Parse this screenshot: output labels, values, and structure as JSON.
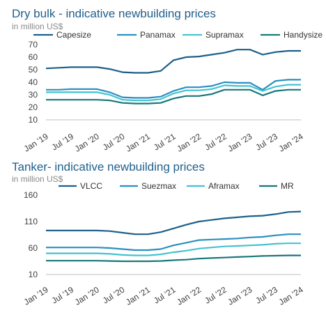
{
  "chart_data": [
    {
      "type": "line",
      "title": "Dry bulk - indicative newbuilding prices",
      "subtitle": "in million US$",
      "xlabel": "",
      "ylabel": "",
      "ylim": [
        10,
        70
      ],
      "yticks": [
        10,
        20,
        30,
        40,
        50,
        60,
        70
      ],
      "x_ticks": [
        "Jan '19",
        "Jul '19",
        "Jan '20",
        "Jul '20",
        "Jan '21",
        "Jul '21",
        "Jan '22",
        "Jul '22",
        "Jan '23",
        "Jul '23",
        "Jan '24"
      ],
      "x": [
        "Jan '19",
        "Apr '19",
        "Jul '19",
        "Oct '19",
        "Jan '20",
        "Apr '20",
        "Jul '20",
        "Oct '20",
        "Jan '21",
        "Apr '21",
        "Jul '21",
        "Oct '21",
        "Jan '22",
        "Apr '22",
        "Jul '22",
        "Oct '22",
        "Jan '23",
        "Apr '23",
        "Jul '23",
        "Oct '23",
        "Jan '24"
      ],
      "grid": false,
      "legend_position": "top",
      "series": [
        {
          "name": "Capesize",
          "color": "#1c5f8a",
          "values": [
            51,
            51.5,
            52,
            52,
            52,
            50.5,
            48,
            47.5,
            47.5,
            49,
            57.5,
            60,
            60.5,
            62,
            63.5,
            66,
            66,
            62,
            64,
            65,
            65
          ]
        },
        {
          "name": "Panamax",
          "color": "#2a8fc1",
          "values": [
            34,
            34,
            34.5,
            34.5,
            34.5,
            32,
            28,
            27.5,
            27.5,
            28.5,
            33,
            36,
            36,
            37,
            40,
            39.5,
            39.5,
            34,
            41,
            42,
            42
          ]
        },
        {
          "name": "Supramax",
          "color": "#44c2d2",
          "values": [
            32,
            32,
            32,
            32,
            32,
            30,
            26,
            25.5,
            25.5,
            26.5,
            31,
            33.5,
            33.5,
            34.5,
            37.5,
            37,
            37,
            33,
            36.5,
            38,
            38
          ]
        },
        {
          "name": "Handysize",
          "color": "#19777a",
          "values": [
            26,
            26,
            26,
            26,
            26,
            25.5,
            23.5,
            23,
            23,
            23.5,
            27,
            29,
            29,
            30.5,
            34,
            34,
            34,
            29.5,
            33,
            34,
            34
          ]
        }
      ]
    },
    {
      "type": "line",
      "title": "Tanker- indicative newbuilding prices",
      "subtitle": "in million US$",
      "xlabel": "",
      "ylabel": "",
      "ylim": [
        10,
        160
      ],
      "yticks": [
        10,
        60,
        110,
        160
      ],
      "x_ticks": [
        "Jan '19",
        "Jul '19",
        "Jan '20",
        "Jul '20",
        "Jan '21",
        "Jul '21",
        "Jan '22",
        "Jul '22",
        "Jan '23",
        "Jul '23",
        "Jan '24"
      ],
      "x": [
        "Jan '19",
        "Apr '19",
        "Jul '19",
        "Oct '19",
        "Jan '20",
        "Apr '20",
        "Jul '20",
        "Oct '20",
        "Jan '21",
        "Apr '21",
        "Jul '21",
        "Oct '21",
        "Jan '22",
        "Apr '22",
        "Jul '22",
        "Oct '22",
        "Jan '23",
        "Apr '23",
        "Jul '23",
        "Oct '23",
        "Jan '24"
      ],
      "grid": false,
      "legend_position": "top",
      "series": [
        {
          "name": "VLCC",
          "color": "#1c5f8a",
          "values": [
            93,
            93,
            93,
            93,
            93,
            92,
            89,
            86,
            86,
            90,
            97,
            104,
            110,
            113,
            116,
            118,
            120,
            121,
            124,
            128,
            129
          ]
        },
        {
          "name": "Suezmax",
          "color": "#2a8fc1",
          "values": [
            61,
            61,
            61,
            61,
            61,
            60,
            58,
            56,
            56,
            58,
            65,
            70,
            75,
            76,
            77,
            78,
            80,
            81,
            84,
            86,
            86
          ]
        },
        {
          "name": "Aframax",
          "color": "#44c2d2",
          "values": [
            50,
            50,
            50,
            50,
            50,
            49,
            47,
            46,
            46,
            48,
            52,
            55,
            59,
            61,
            63,
            64,
            65,
            66,
            68,
            69,
            69
          ]
        },
        {
          "name": "MR",
          "color": "#19777a",
          "values": [
            36,
            36,
            36,
            36,
            36,
            35.5,
            35,
            35,
            35,
            35.5,
            37,
            38,
            40,
            41,
            42,
            43,
            44,
            45,
            45.5,
            46,
            46
          ]
        }
      ]
    }
  ]
}
